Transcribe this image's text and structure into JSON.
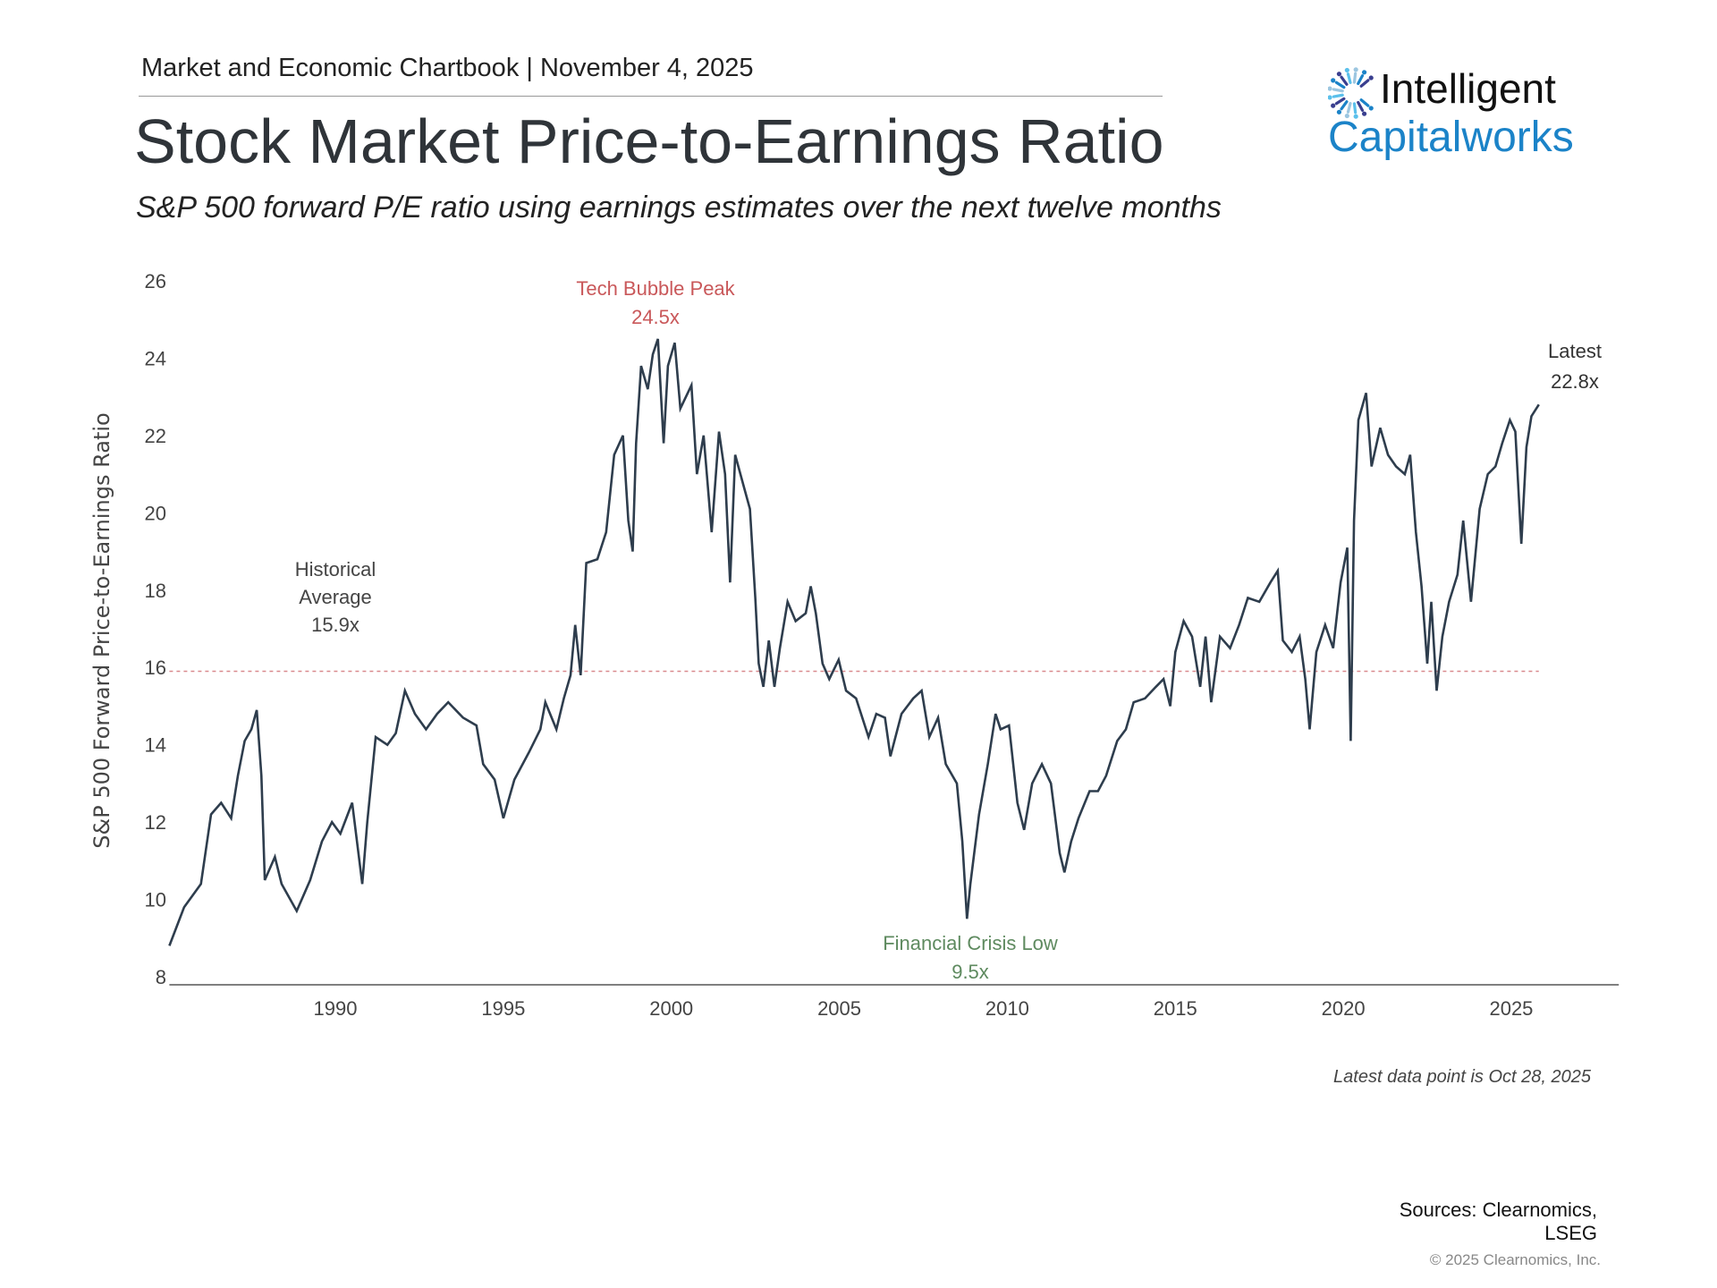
{
  "header": {
    "text": "Market and Economic Chartbook | November 4, 2025"
  },
  "title": "Stock Market Price-to-Earnings Ratio",
  "subtitle": "S&P 500 forward P/E ratio using earnings estimates over the next twelve months",
  "logo": {
    "line1": "Intelligent",
    "line2": "Capitalworks",
    "colors": [
      "#1b83c8",
      "#3a3f8f",
      "#5bc0eb",
      "#9cc6e0"
    ]
  },
  "colors": {
    "line": "#2e3d4d",
    "average": "#d98a8e",
    "tech_annotation": "#c9585a",
    "crisis_annotation": "#5e8a5f",
    "axis": "#555555"
  },
  "chart_data": {
    "type": "line",
    "title": "Stock Market Price-to-Earnings Ratio",
    "ylabel": "S&P 500 Forward Price-to-Earnings Ratio",
    "xlabel": "",
    "ylim": [
      8,
      26
    ],
    "yticks": [
      "8",
      "10",
      "12",
      "14",
      "16",
      "18",
      "20",
      "22",
      "24",
      "26"
    ],
    "xlim": [
      1985.06,
      2028.2
    ],
    "xticks": [
      "1990",
      "1995",
      "2000",
      "2005",
      "2010",
      "2015",
      "2020",
      "2025"
    ],
    "grid": false,
    "series": [
      {
        "x": [
          1985.06,
          1985.5,
          1986.0,
          1986.3,
          1986.6,
          1986.9,
          1987.1,
          1987.3,
          1987.5,
          1987.66,
          1987.8,
          1987.9,
          1988.2,
          1988.4,
          1988.85,
          1989.25,
          1989.6,
          1989.9,
          1990.15,
          1990.5,
          1990.8,
          1990.95,
          1991.2,
          1991.55,
          1991.8,
          1992.07,
          1992.37,
          1992.7,
          1993.03,
          1993.36,
          1993.8,
          1994.2,
          1994.4,
          1994.74,
          1995.0,
          1995.33,
          1995.76,
          1996.1,
          1996.25,
          1996.58,
          1996.8,
          1997.0,
          1997.14,
          1997.3,
          1997.47,
          1997.8,
          1998.06,
          1998.3,
          1998.56,
          1998.72,
          1998.85,
          1998.95,
          1999.1,
          1999.3,
          1999.45,
          1999.6,
          1999.77,
          1999.9,
          2000.1,
          2000.27,
          2000.6,
          2000.76,
          2000.96,
          2001.2,
          2001.42,
          2001.6,
          2001.75,
          2001.9,
          2002.15,
          2002.34,
          2002.5,
          2002.6,
          2002.74,
          2002.9,
          2003.07,
          2003.23,
          2003.46,
          2003.7,
          2004.0,
          2004.15,
          2004.3,
          2004.5,
          2004.7,
          2004.98,
          2005.2,
          2005.5,
          2005.87,
          2006.1,
          2006.36,
          2006.52,
          2006.85,
          2007.2,
          2007.45,
          2007.68,
          2007.94,
          2008.17,
          2008.5,
          2008.66,
          2008.8,
          2008.9,
          2009.16,
          2009.42,
          2009.65,
          2009.8,
          2010.05,
          2010.3,
          2010.5,
          2010.74,
          2011.03,
          2011.3,
          2011.56,
          2011.7,
          2011.9,
          2012.12,
          2012.45,
          2012.7,
          2012.94,
          2013.27,
          2013.53,
          2013.76,
          2014.1,
          2014.42,
          2014.65,
          2014.85,
          2015.0,
          2015.25,
          2015.5,
          2015.74,
          2015.9,
          2016.07,
          2016.33,
          2016.63,
          2016.9,
          2017.16,
          2017.5,
          2017.83,
          2018.05,
          2018.2,
          2018.47,
          2018.7,
          2018.87,
          2019.0,
          2019.2,
          2019.46,
          2019.7,
          2019.92,
          2020.12,
          2020.22,
          2020.32,
          2020.45,
          2020.68,
          2020.84,
          2021.1,
          2021.33,
          2021.57,
          2021.83,
          2021.99,
          2022.16,
          2022.33,
          2022.5,
          2022.62,
          2022.78,
          2022.95,
          2023.15,
          2023.4,
          2023.57,
          2023.8,
          2024.06,
          2024.3,
          2024.53,
          2024.73,
          2024.96,
          2025.12,
          2025.3,
          2025.45,
          2025.6,
          2025.82
        ],
        "values": [
          8.8,
          9.8,
          10.4,
          12.2,
          12.5,
          12.1,
          13.2,
          14.1,
          14.4,
          14.9,
          13.2,
          10.5,
          11.1,
          10.4,
          9.7,
          10.5,
          11.5,
          12.0,
          11.7,
          12.5,
          10.4,
          12.0,
          14.2,
          14.0,
          14.3,
          15.4,
          14.8,
          14.4,
          14.8,
          15.1,
          14.7,
          14.5,
          13.5,
          13.1,
          12.1,
          13.1,
          13.8,
          14.4,
          15.1,
          14.4,
          15.2,
          15.8,
          17.1,
          15.8,
          18.7,
          18.8,
          19.5,
          21.5,
          22.0,
          19.8,
          19.0,
          21.8,
          23.8,
          23.2,
          24.1,
          24.5,
          21.8,
          23.8,
          24.4,
          22.7,
          23.3,
          21.0,
          22.0,
          19.5,
          22.1,
          21.0,
          18.2,
          21.5,
          20.7,
          20.1,
          17.8,
          16.1,
          15.5,
          16.7,
          15.5,
          16.5,
          17.7,
          17.2,
          17.4,
          18.1,
          17.4,
          16.1,
          15.7,
          16.2,
          15.4,
          15.2,
          14.2,
          14.8,
          14.7,
          13.7,
          14.8,
          15.2,
          15.4,
          14.2,
          14.7,
          13.5,
          13.0,
          11.5,
          9.5,
          10.4,
          12.2,
          13.5,
          14.8,
          14.4,
          14.5,
          12.5,
          11.8,
          13.0,
          13.5,
          13.0,
          11.2,
          10.7,
          11.5,
          12.1,
          12.8,
          12.8,
          13.2,
          14.1,
          14.4,
          15.1,
          15.2,
          15.5,
          15.7,
          15.0,
          16.4,
          17.2,
          16.8,
          15.5,
          16.8,
          15.1,
          16.8,
          16.5,
          17.1,
          17.8,
          17.7,
          18.2,
          18.5,
          16.7,
          16.4,
          16.8,
          15.7,
          14.4,
          16.4,
          17.1,
          16.5,
          18.2,
          19.1,
          14.1,
          19.8,
          22.4,
          23.1,
          21.2,
          22.2,
          21.5,
          21.2,
          21.0,
          21.5,
          19.5,
          18.1,
          16.1,
          17.7,
          15.4,
          16.8,
          17.7,
          18.4,
          19.8,
          17.7,
          20.1,
          21.0,
          21.2,
          21.8,
          22.4,
          22.1,
          19.2,
          21.7,
          22.5,
          22.8
        ]
      }
    ],
    "reference_line": {
      "value": 15.9,
      "style": "dashed"
    },
    "annotations": {
      "average": {
        "lines": [
          "Historical",
          "Average",
          "15.9x"
        ]
      },
      "tech_peak": {
        "lines": [
          "Tech Bubble Peak",
          "24.5x"
        ]
      },
      "latest": {
        "lines": [
          "Latest",
          "22.8x"
        ]
      },
      "crisis_low": {
        "lines": [
          "Financial Crisis Low",
          "9.5x"
        ]
      }
    }
  },
  "footer": {
    "footnote": "Latest data point is Oct 28, 2025",
    "sources_line1": "Sources: Clearnomics,",
    "sources_line2": "LSEG",
    "copyright": "© 2025 Clearnomics, Inc."
  }
}
